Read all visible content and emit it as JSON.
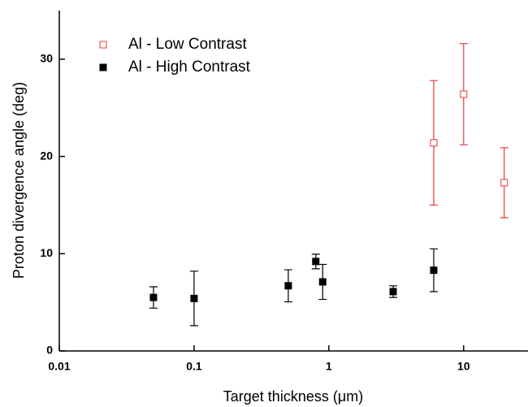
{
  "chart_data": {
    "type": "scatter",
    "x_label": "Target thickness (μm)",
    "y_label": "Proton divergence angle (deg)",
    "xscale": "log",
    "xlim": [
      0.01,
      30
    ],
    "xticks": [
      0.01,
      0.1,
      1,
      10
    ],
    "ylim": [
      0,
      35
    ],
    "yticks": [
      0,
      10,
      20,
      30
    ],
    "legend": "top-left",
    "series": [
      {
        "name": "Al - Low Contrast",
        "color": "#e03a3a",
        "marker": "open-square",
        "x": [
          6,
          10,
          20
        ],
        "values": [
          21.4,
          26.4,
          17.3
        ],
        "errors": [
          6.4,
          5.2,
          3.6
        ]
      },
      {
        "name": "Al - High Contrast",
        "color": "#000000",
        "marker": "square",
        "x": [
          0.05,
          0.1,
          0.5,
          0.8,
          0.9,
          3,
          6
        ],
        "values": [
          5.5,
          5.4,
          6.7,
          9.2,
          7.1,
          6.1,
          8.3
        ],
        "errors": [
          1.1,
          2.8,
          1.65,
          0.75,
          1.8,
          0.6,
          2.2
        ]
      }
    ]
  }
}
